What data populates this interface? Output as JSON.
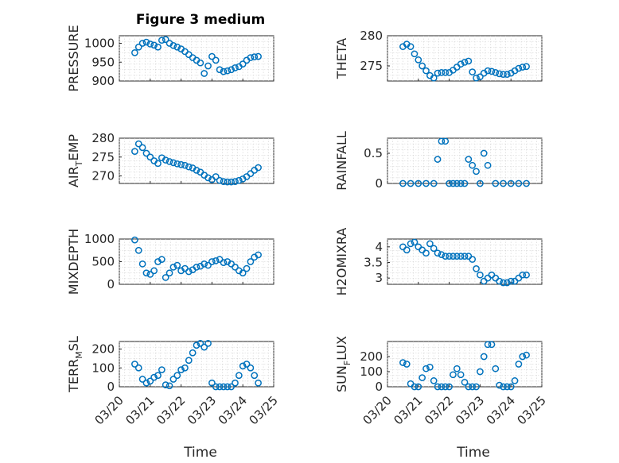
{
  "figure": {
    "title": "Figure 3 medium",
    "xlabel": "Time",
    "xticks": [
      "03/20",
      "03/21",
      "03/22",
      "03/23",
      "03/24",
      "03/25"
    ]
  },
  "chart_data": [
    {
      "type": "scatter",
      "ylabel": "PRESSURE",
      "ylim": [
        900,
        1020
      ],
      "yticks": [
        "900",
        "950",
        "1000"
      ],
      "grid": true,
      "x": [
        "03/20 12:00",
        "03/20 15:00",
        "03/20 18:00",
        "03/20 21:00",
        "03/21 00:00",
        "03/21 03:00",
        "03/21 06:00",
        "03/21 09:00",
        "03/21 12:00",
        "03/21 15:00",
        "03/21 18:00",
        "03/21 21:00",
        "03/22 00:00",
        "03/22 03:00",
        "03/22 06:00",
        "03/22 09:00",
        "03/22 12:00",
        "03/22 15:00",
        "03/22 18:00",
        "03/22 21:00",
        "03/23 00:00",
        "03/23 03:00",
        "03/23 06:00",
        "03/23 09:00",
        "03/23 12:00",
        "03/23 15:00",
        "03/23 18:00",
        "03/23 21:00",
        "03/24 00:00",
        "03/24 03:00",
        "03/24 06:00",
        "03/24 09:00",
        "03/24 12:00"
      ],
      "y": [
        975,
        990,
        1000,
        1003,
        998,
        995,
        990,
        1008,
        1010,
        1000,
        994,
        990,
        985,
        978,
        970,
        962,
        955,
        948,
        920,
        940,
        965,
        955,
        930,
        925,
        927,
        930,
        935,
        938,
        945,
        955,
        962,
        964,
        965
      ]
    },
    {
      "type": "scatter",
      "ylabel": "THETA",
      "ylim": [
        272.5,
        280
      ],
      "yticks": [
        "275",
        "280"
      ],
      "grid": true,
      "x": [
        "03/20 12:00",
        "03/20 15:00",
        "03/20 18:00",
        "03/20 21:00",
        "03/21 00:00",
        "03/21 03:00",
        "03/21 06:00",
        "03/21 09:00",
        "03/21 12:00",
        "03/21 15:00",
        "03/21 18:00",
        "03/21 21:00",
        "03/22 00:00",
        "03/22 03:00",
        "03/22 06:00",
        "03/22 09:00",
        "03/22 12:00",
        "03/22 15:00",
        "03/22 18:00",
        "03/22 21:00",
        "03/23 00:00",
        "03/23 03:00",
        "03/23 06:00",
        "03/23 09:00",
        "03/23 12:00",
        "03/23 15:00",
        "03/23 18:00",
        "03/23 21:00",
        "03/24 00:00",
        "03/24 03:00",
        "03/24 06:00",
        "03/24 09:00",
        "03/24 12:00"
      ],
      "y": [
        278.2,
        278.6,
        278.2,
        277,
        276,
        275,
        274.2,
        273.4,
        273,
        273.8,
        273.9,
        273.9,
        273.9,
        274.3,
        274.8,
        275.3,
        275.6,
        275.8,
        274,
        273,
        273.2,
        273.8,
        274.2,
        274.1,
        273.9,
        273.7,
        273.6,
        273.6,
        273.8,
        274.2,
        274.6,
        274.8,
        274.9
      ]
    },
    {
      "type": "scatter",
      "ylabel": "AIR",
      "ylabel_sub": "T",
      "ylabel_rest": "EMP",
      "ylim": [
        268,
        280
      ],
      "yticks": [
        "270",
        "275",
        "280"
      ],
      "grid": true,
      "x": [
        "03/20 12:00",
        "03/20 15:00",
        "03/20 18:00",
        "03/20 21:00",
        "03/21 00:00",
        "03/21 03:00",
        "03/21 06:00",
        "03/21 09:00",
        "03/21 12:00",
        "03/21 15:00",
        "03/21 18:00",
        "03/21 21:00",
        "03/22 00:00",
        "03/22 03:00",
        "03/22 06:00",
        "03/22 09:00",
        "03/22 12:00",
        "03/22 15:00",
        "03/22 18:00",
        "03/22 21:00",
        "03/23 00:00",
        "03/23 03:00",
        "03/23 06:00",
        "03/23 09:00",
        "03/23 12:00",
        "03/23 15:00",
        "03/23 18:00",
        "03/23 21:00",
        "03/24 00:00",
        "03/24 03:00",
        "03/24 06:00",
        "03/24 09:00",
        "03/24 12:00"
      ],
      "y": [
        276.5,
        278.5,
        277.5,
        276,
        275,
        274,
        273.3,
        274.8,
        274.2,
        273.8,
        273.5,
        273.2,
        273,
        272.8,
        272.4,
        272.1,
        271.5,
        271,
        270.2,
        269.5,
        269,
        269.8,
        268.8,
        268.5,
        268.4,
        268.4,
        268.5,
        268.8,
        269.2,
        269.8,
        270.6,
        271.5,
        272.2
      ]
    },
    {
      "type": "scatter",
      "ylabel": "RAINFALL",
      "ylim": [
        0,
        0.75
      ],
      "yticks": [
        "0",
        "0.5"
      ],
      "grid": true,
      "x": [
        "03/20 12:00",
        "03/20 18:00",
        "03/21 00:00",
        "03/21 06:00",
        "03/21 12:00",
        "03/21 15:00",
        "03/21 18:00",
        "03/21 21:00",
        "03/22 00:00",
        "03/22 03:00",
        "03/22 06:00",
        "03/22 09:00",
        "03/22 12:00",
        "03/22 15:00",
        "03/22 18:00",
        "03/22 21:00",
        "03/23 00:00",
        "03/23 03:00",
        "03/23 06:00",
        "03/23 12:00",
        "03/23 18:00",
        "03/24 00:00",
        "03/24 06:00",
        "03/24 12:00"
      ],
      "y": [
        0,
        0,
        0,
        0,
        0,
        0.4,
        0.7,
        0.7,
        0,
        0,
        0,
        0,
        0,
        0.4,
        0.3,
        0.2,
        0,
        0.5,
        0.3,
        0,
        0,
        0,
        0,
        0
      ]
    },
    {
      "type": "scatter",
      "ylabel": "MIXDEPTH",
      "ylim": [
        0,
        1000
      ],
      "yticks": [
        "0",
        "500",
        "1000"
      ],
      "grid": true,
      "x": [
        "03/20 12:00",
        "03/20 15:00",
        "03/20 18:00",
        "03/20 21:00",
        "03/21 00:00",
        "03/21 03:00",
        "03/21 06:00",
        "03/21 09:00",
        "03/21 12:00",
        "03/21 15:00",
        "03/21 18:00",
        "03/21 21:00",
        "03/22 00:00",
        "03/22 03:00",
        "03/22 06:00",
        "03/22 09:00",
        "03/22 12:00",
        "03/22 15:00",
        "03/22 18:00",
        "03/22 21:00",
        "03/23 00:00",
        "03/23 03:00",
        "03/23 06:00",
        "03/23 09:00",
        "03/23 12:00",
        "03/23 15:00",
        "03/23 18:00",
        "03/23 21:00",
        "03/24 00:00",
        "03/24 03:00",
        "03/24 06:00",
        "03/24 09:00",
        "03/24 12:00"
      ],
      "y": [
        980,
        750,
        450,
        250,
        220,
        300,
        500,
        550,
        150,
        250,
        380,
        420,
        300,
        350,
        280,
        320,
        380,
        400,
        450,
        420,
        500,
        520,
        550,
        480,
        500,
        450,
        380,
        300,
        250,
        350,
        500,
        600,
        650
      ]
    },
    {
      "type": "scatter",
      "ylabel": "H2OMIXRA",
      "ylim": [
        2.8,
        4.25
      ],
      "yticks": [
        "3",
        "3.5",
        "4"
      ],
      "grid": true,
      "x": [
        "03/20 12:00",
        "03/20 15:00",
        "03/20 18:00",
        "03/20 21:00",
        "03/21 00:00",
        "03/21 03:00",
        "03/21 06:00",
        "03/21 09:00",
        "03/21 12:00",
        "03/21 15:00",
        "03/21 18:00",
        "03/21 21:00",
        "03/22 00:00",
        "03/22 03:00",
        "03/22 06:00",
        "03/22 09:00",
        "03/22 12:00",
        "03/22 15:00",
        "03/22 18:00",
        "03/22 21:00",
        "03/23 00:00",
        "03/23 03:00",
        "03/23 06:00",
        "03/23 09:00",
        "03/23 12:00",
        "03/23 15:00",
        "03/23 18:00",
        "03/23 21:00",
        "03/24 00:00",
        "03/24 03:00",
        "03/24 06:00",
        "03/24 09:00",
        "03/24 12:00"
      ],
      "y": [
        4,
        3.9,
        4.1,
        4.15,
        4,
        3.9,
        3.8,
        4.1,
        3.95,
        3.8,
        3.75,
        3.7,
        3.7,
        3.7,
        3.7,
        3.7,
        3.7,
        3.7,
        3.6,
        3.3,
        3.1,
        2.9,
        3,
        3.1,
        3,
        2.9,
        2.85,
        2.85,
        2.9,
        2.9,
        3,
        3.1,
        3.1
      ]
    },
    {
      "type": "scatter",
      "ylabel": "TERR",
      "ylabel_sub": "M",
      "ylabel_rest": "SL",
      "ylim": [
        0,
        240
      ],
      "yticks": [
        "0",
        "100",
        "200"
      ],
      "grid": true,
      "x": [
        "03/20 12:00",
        "03/20 15:00",
        "03/20 18:00",
        "03/20 21:00",
        "03/21 00:00",
        "03/21 03:00",
        "03/21 06:00",
        "03/21 09:00",
        "03/21 12:00",
        "03/21 15:00",
        "03/21 18:00",
        "03/21 21:00",
        "03/22 00:00",
        "03/22 03:00",
        "03/22 06:00",
        "03/22 09:00",
        "03/22 12:00",
        "03/22 15:00",
        "03/22 18:00",
        "03/22 21:00",
        "03/23 00:00",
        "03/23 03:00",
        "03/23 06:00",
        "03/23 09:00",
        "03/23 12:00",
        "03/23 15:00",
        "03/23 18:00",
        "03/23 21:00",
        "03/24 00:00",
        "03/24 03:00",
        "03/24 06:00",
        "03/24 09:00",
        "03/24 12:00"
      ],
      "y": [
        120,
        100,
        40,
        20,
        30,
        50,
        60,
        90,
        10,
        5,
        40,
        60,
        90,
        100,
        140,
        180,
        220,
        230,
        210,
        230,
        20,
        0,
        0,
        0,
        0,
        0,
        20,
        60,
        110,
        120,
        100,
        60,
        20
      ]
    },
    {
      "type": "scatter",
      "ylabel": "SUN",
      "ylabel_sub": "F",
      "ylabel_rest": "LUX",
      "ylim": [
        0,
        300
      ],
      "yticks": [
        "0",
        "100",
        "200"
      ],
      "grid": true,
      "x": [
        "03/20 12:00",
        "03/20 15:00",
        "03/20 18:00",
        "03/20 21:00",
        "03/21 00:00",
        "03/21 03:00",
        "03/21 06:00",
        "03/21 09:00",
        "03/21 12:00",
        "03/21 15:00",
        "03/21 18:00",
        "03/21 21:00",
        "03/22 00:00",
        "03/22 03:00",
        "03/22 06:00",
        "03/22 09:00",
        "03/22 12:00",
        "03/22 15:00",
        "03/22 18:00",
        "03/22 21:00",
        "03/23 00:00",
        "03/23 03:00",
        "03/23 06:00",
        "03/23 09:00",
        "03/23 12:00",
        "03/23 15:00",
        "03/23 18:00",
        "03/23 21:00",
        "03/24 00:00",
        "03/24 03:00",
        "03/24 06:00",
        "03/24 09:00",
        "03/24 12:00"
      ],
      "y": [
        160,
        150,
        20,
        0,
        0,
        60,
        120,
        130,
        40,
        0,
        0,
        0,
        0,
        80,
        120,
        80,
        30,
        0,
        0,
        0,
        100,
        200,
        280,
        280,
        120,
        10,
        0,
        0,
        0,
        40,
        150,
        200,
        210
      ]
    }
  ]
}
